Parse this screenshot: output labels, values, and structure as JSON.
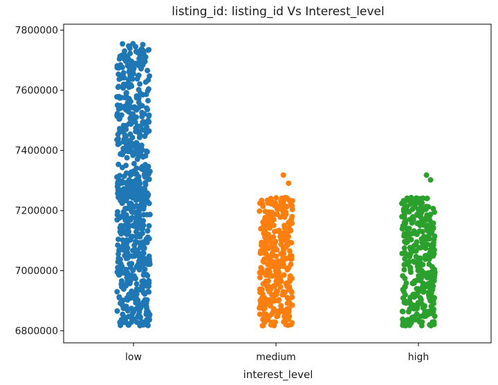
{
  "chart_data": {
    "type": "scatter",
    "style": "strip",
    "title": "listing_id: listing_id Vs Interest_level",
    "xlabel": "interest_level",
    "ylabel": "",
    "categories": [
      "low",
      "medium",
      "high"
    ],
    "ylim": [
      6760000,
      7820000
    ],
    "yticks": [
      6800000,
      7000000,
      7200000,
      7400000,
      7600000,
      7800000
    ],
    "grid": false,
    "series": [
      {
        "category": "low",
        "color": "#1f77b4",
        "dense_range": [
          6811000,
          7242000
        ],
        "sparse_range": [
          7242000,
          7755000
        ],
        "outliers": [
          7755000,
          7745000,
          7735000,
          7722000,
          7705000,
          7690000,
          7682000,
          7665000,
          7650000,
          7640000,
          7620000,
          7602000,
          7590000,
          7575000
        ]
      },
      {
        "category": "medium",
        "color": "#ff7f0e",
        "dense_range": [
          6811000,
          7242000
        ],
        "outliers": [
          7291000,
          7318000
        ]
      },
      {
        "category": "high",
        "color": "#2ca02c",
        "dense_range": [
          6811000,
          7242000
        ],
        "outliers": [
          7302000,
          7318000
        ]
      }
    ]
  }
}
